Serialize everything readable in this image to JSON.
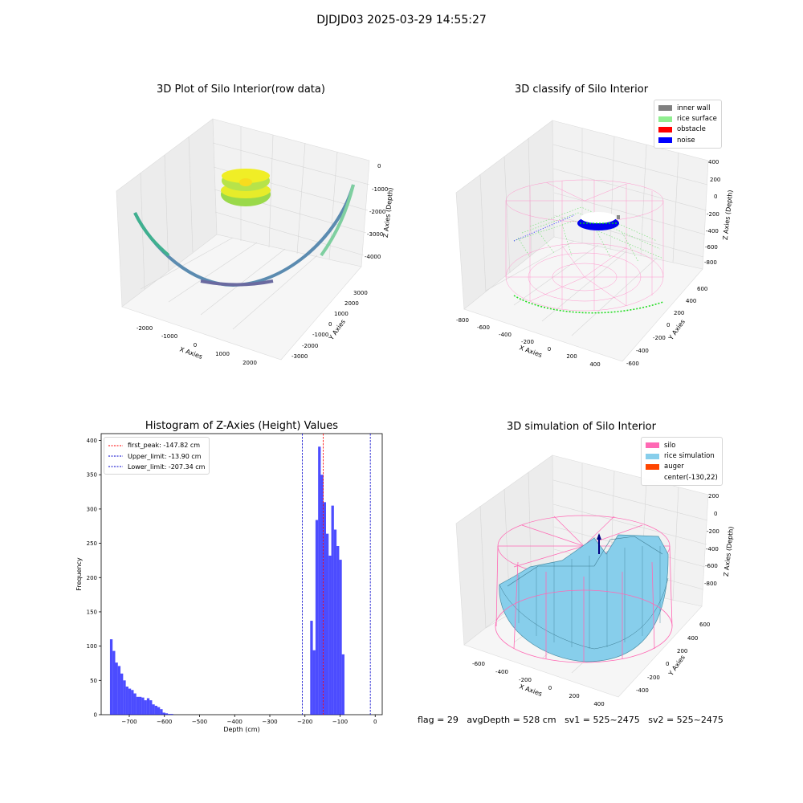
{
  "figure": {
    "title": "DJDJD03 2025-03-29 14:55:27"
  },
  "panel_tl": {
    "title": "3D Plot of Silo Interior(row data)",
    "xlabel": "X Axies",
    "ylabel": "Y Axies",
    "zlabel": "Z Axies (Depth)",
    "xticks": [
      "-2000",
      "-1000",
      "0",
      "1000",
      "2000"
    ],
    "yticks": [
      "-3000",
      "-2000",
      "-1000",
      "0",
      "1000",
      "2000",
      "3000"
    ],
    "zticks": [
      "0",
      "-1000",
      "-2000",
      "-3000",
      "-4000"
    ]
  },
  "panel_tr": {
    "title": "3D classify of Silo Interior",
    "xlabel": "X Axies",
    "ylabel": "Y Axies",
    "zlabel": "Z Axies (Depth)",
    "xticks": [
      "-800",
      "-600",
      "-400",
      "-200",
      "0",
      "200",
      "400"
    ],
    "yticks": [
      "-600",
      "-400",
      "-200",
      "0",
      "200",
      "400",
      "600"
    ],
    "zticks": [
      "400",
      "200",
      "0",
      "-200",
      "-400",
      "-600",
      "-800"
    ],
    "legend": [
      {
        "label": "inner wall",
        "color": "#808080"
      },
      {
        "label": "rice surface",
        "color": "#90ee90"
      },
      {
        "label": "obstacle",
        "color": "#ff0000"
      },
      {
        "label": "noise",
        "color": "#0000ff"
      }
    ]
  },
  "panel_br": {
    "title": "3D simulation of Silo Interior",
    "xlabel": "X Axies",
    "ylabel": "Y Axies",
    "zlabel": "Z Axies (Depth)",
    "xticks": [
      "-600",
      "-400",
      "-200",
      "0",
      "200",
      "400"
    ],
    "yticks": [
      "-400",
      "-200",
      "0",
      "200",
      "400",
      "600"
    ],
    "zticks": [
      "200",
      "0",
      "-200",
      "-400",
      "-600",
      "-800"
    ],
    "legend": [
      {
        "label": "silo",
        "color": "#ff69b4"
      },
      {
        "label": "rice simulation",
        "color": "#87ceeb"
      },
      {
        "label": "auger",
        "color": "#ff4500"
      },
      {
        "label": "center(-130,22)",
        "color": ""
      }
    ]
  },
  "chart_data": {
    "type": "bar",
    "title": "Histogram of Z-Axies (Height) Values",
    "xlabel": "Depth (cm)",
    "ylabel": "Frequency",
    "xlim": [
      -780,
      20
    ],
    "ylim": [
      0,
      410
    ],
    "xticks": [
      "-700",
      "-600",
      "-500",
      "-400",
      "-300",
      "-200",
      "-100",
      "0"
    ],
    "yticks": [
      "0",
      "50",
      "100",
      "150",
      "200",
      "250",
      "300",
      "350",
      "400"
    ],
    "color": "#0000ff",
    "bin_width": 7.5,
    "bin_starts": [
      -755,
      -747.5,
      -740,
      -732.5,
      -725,
      -717.5,
      -710,
      -702.5,
      -695,
      -687.5,
      -680,
      -672.5,
      -665,
      -657.5,
      -650,
      -642.5,
      -635,
      -627.5,
      -620,
      -612.5,
      -605,
      -597.5,
      -590,
      -582.5,
      -575,
      -567.5,
      -560,
      -552.5,
      -545,
      -537.5,
      -530,
      -522.5,
      -515,
      -507.5,
      -500,
      -492.5,
      -485,
      -477.5,
      -470,
      -462.5,
      -455,
      -447.5,
      -440,
      -432.5,
      -425,
      -417.5,
      -410,
      -402.5,
      -395,
      -387.5,
      -380,
      -372.5,
      -365,
      -357.5,
      -350,
      -342.5,
      -335,
      -327.5,
      -320,
      -312.5,
      -305,
      -297.5,
      -290,
      -282.5,
      -275,
      -267.5,
      -260,
      -252.5,
      -245,
      -237.5,
      -230,
      -222.5,
      -215,
      -207.5,
      -200,
      -192.5,
      -185,
      -177.5,
      -170,
      -162.5,
      -155,
      -147.5,
      -140,
      -132.5,
      -125,
      -117.5,
      -110,
      -102.5,
      -95,
      -87.5,
      -80,
      -72.5,
      -65,
      -57.5,
      -50,
      -42.5,
      -35,
      -27.5,
      -20
    ],
    "values": [
      110,
      93,
      76,
      71,
      60,
      50,
      41,
      38,
      36,
      31,
      26,
      26,
      25,
      21,
      24,
      21,
      15,
      13,
      11,
      8,
      3,
      2,
      1,
      1,
      0,
      0,
      0,
      0,
      0,
      0,
      0,
      0,
      0,
      0,
      0,
      0,
      0,
      0,
      0,
      0,
      0,
      0,
      0,
      0,
      0,
      0,
      0,
      0,
      0,
      0,
      0,
      0,
      0,
      0,
      0,
      0,
      0,
      0,
      0,
      0,
      0,
      0,
      0,
      0,
      0,
      0,
      0,
      0,
      0,
      0,
      0,
      0,
      0,
      0,
      0,
      0,
      137,
      94,
      284,
      391,
      350,
      310,
      264,
      232,
      305,
      270,
      246,
      226,
      88,
      0,
      0,
      0,
      0,
      0,
      0,
      0,
      0,
      0,
      0,
      0
    ],
    "vlines": [
      {
        "label": "first_peak: -147.82 cm",
        "x": -147.82,
        "color": "#ff0000"
      },
      {
        "label": "Upper_limit: -13.90 cm",
        "x": -13.9,
        "color": "#0000cc"
      },
      {
        "label": "Lower_limit: -207.34 cm",
        "x": -207.34,
        "color": "#0000cc"
      }
    ],
    "legend_position": "upper left"
  },
  "footer": {
    "flag": "flag = 29",
    "avg": "avgDepth = 528 cm",
    "sv1": "sv1 = 525~2475",
    "sv2": "sv2 = 525~2475"
  }
}
